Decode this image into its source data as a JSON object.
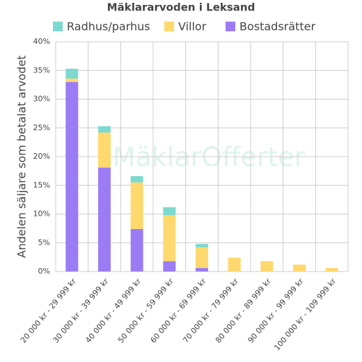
{
  "chart_data": {
    "type": "stacked-bar",
    "title": "Mäklararvoden i Leksand",
    "y_label": "Andelen säljare som betalat arvodet",
    "watermark": "MäklarOfferter",
    "categories": [
      "20 000 kr - 29 999 kr",
      "30 000 kr - 39 999 kr",
      "40 000 kr - 49 999 kr",
      "50 000 kr - 59 999 kr",
      "60 000 kr - 69 999 kr",
      "70 000 kr - 79 999 kr",
      "80 000 kr - 89 999 kr",
      "90 000 kr - 99 999 kr",
      "100 000 kr - 109 999 kr"
    ],
    "series": [
      {
        "name": "Radhus/parhus",
        "color": "#7dd9cf",
        "values": [
          1.7,
          1.1,
          1.1,
          1.4,
          0.6,
          0,
          0,
          0,
          0
        ]
      },
      {
        "name": "Villor",
        "color": "#ffd86e",
        "values": [
          0.6,
          6.1,
          8.1,
          8.0,
          3.6,
          2.4,
          1.8,
          1.2,
          0.6
        ]
      },
      {
        "name": "Bostadsrätter",
        "color": "#9b7cf5",
        "values": [
          33.0,
          18.1,
          7.4,
          1.8,
          0.6,
          0,
          0,
          0,
          0
        ]
      }
    ],
    "ylim": [
      0,
      40
    ],
    "yticks": [
      {
        "value": 0,
        "label": "0%"
      },
      {
        "value": 5,
        "label": "5%"
      },
      {
        "value": 10,
        "label": "10%"
      },
      {
        "value": 15,
        "label": "15%"
      },
      {
        "value": 20,
        "label": "20%"
      },
      {
        "value": 25,
        "label": "25%"
      },
      {
        "value": 30,
        "label": "30%"
      },
      {
        "value": 35,
        "label": "35%"
      },
      {
        "value": 40,
        "label": "40%"
      }
    ],
    "grid": true
  }
}
